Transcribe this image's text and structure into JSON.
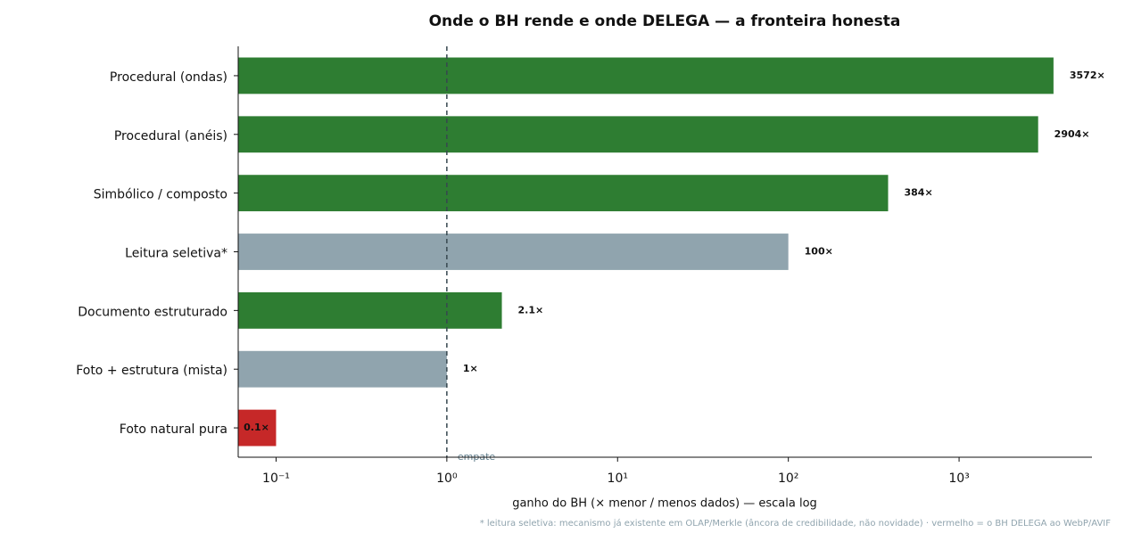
{
  "chart_data": {
    "type": "barh",
    "title": "Onde o BH rende e onde DELEGA — a fronteira honesta",
    "categories": [
      "Procedural (ondas)",
      "Procedural (anéis)",
      "Simbólico / composto",
      "Leitura seletiva*",
      "Documento estruturado",
      "Foto + estrutura (mista)",
      "Foto natural pura"
    ],
    "values": [
      3572,
      2904,
      384,
      100,
      2.1,
      1,
      0.1
    ],
    "value_labels": [
      "3572×",
      "2904×",
      "384×",
      "100×",
      "2.1×",
      "1×",
      "0.1×"
    ],
    "colors": [
      "#2e7d32",
      "#2e7d32",
      "#2e7d32",
      "#90a4ae",
      "#2e7d32",
      "#90a4ae",
      "#c62828"
    ],
    "xscale": "log",
    "xlim": [
      0.06,
      6000
    ],
    "xticks": [
      {
        "value": 0.1,
        "label": "10⁻¹"
      },
      {
        "value": 1,
        "label": "10⁰"
      },
      {
        "value": 10,
        "label": "10¹"
      },
      {
        "value": 100,
        "label": "10²"
      },
      {
        "value": 1000,
        "label": "10³"
      }
    ],
    "xlabel": "ganho do BH (× menor / menos dados)  —  escala log",
    "reference_line": {
      "value": 1,
      "label": "empate"
    },
    "footnote": "* leitura seletiva: mecanismo já existente em OLAP/Merkle (âncora de credibilidade, não novidade) · vermelho = o BH DELEGA ao WebP/AVIF"
  }
}
